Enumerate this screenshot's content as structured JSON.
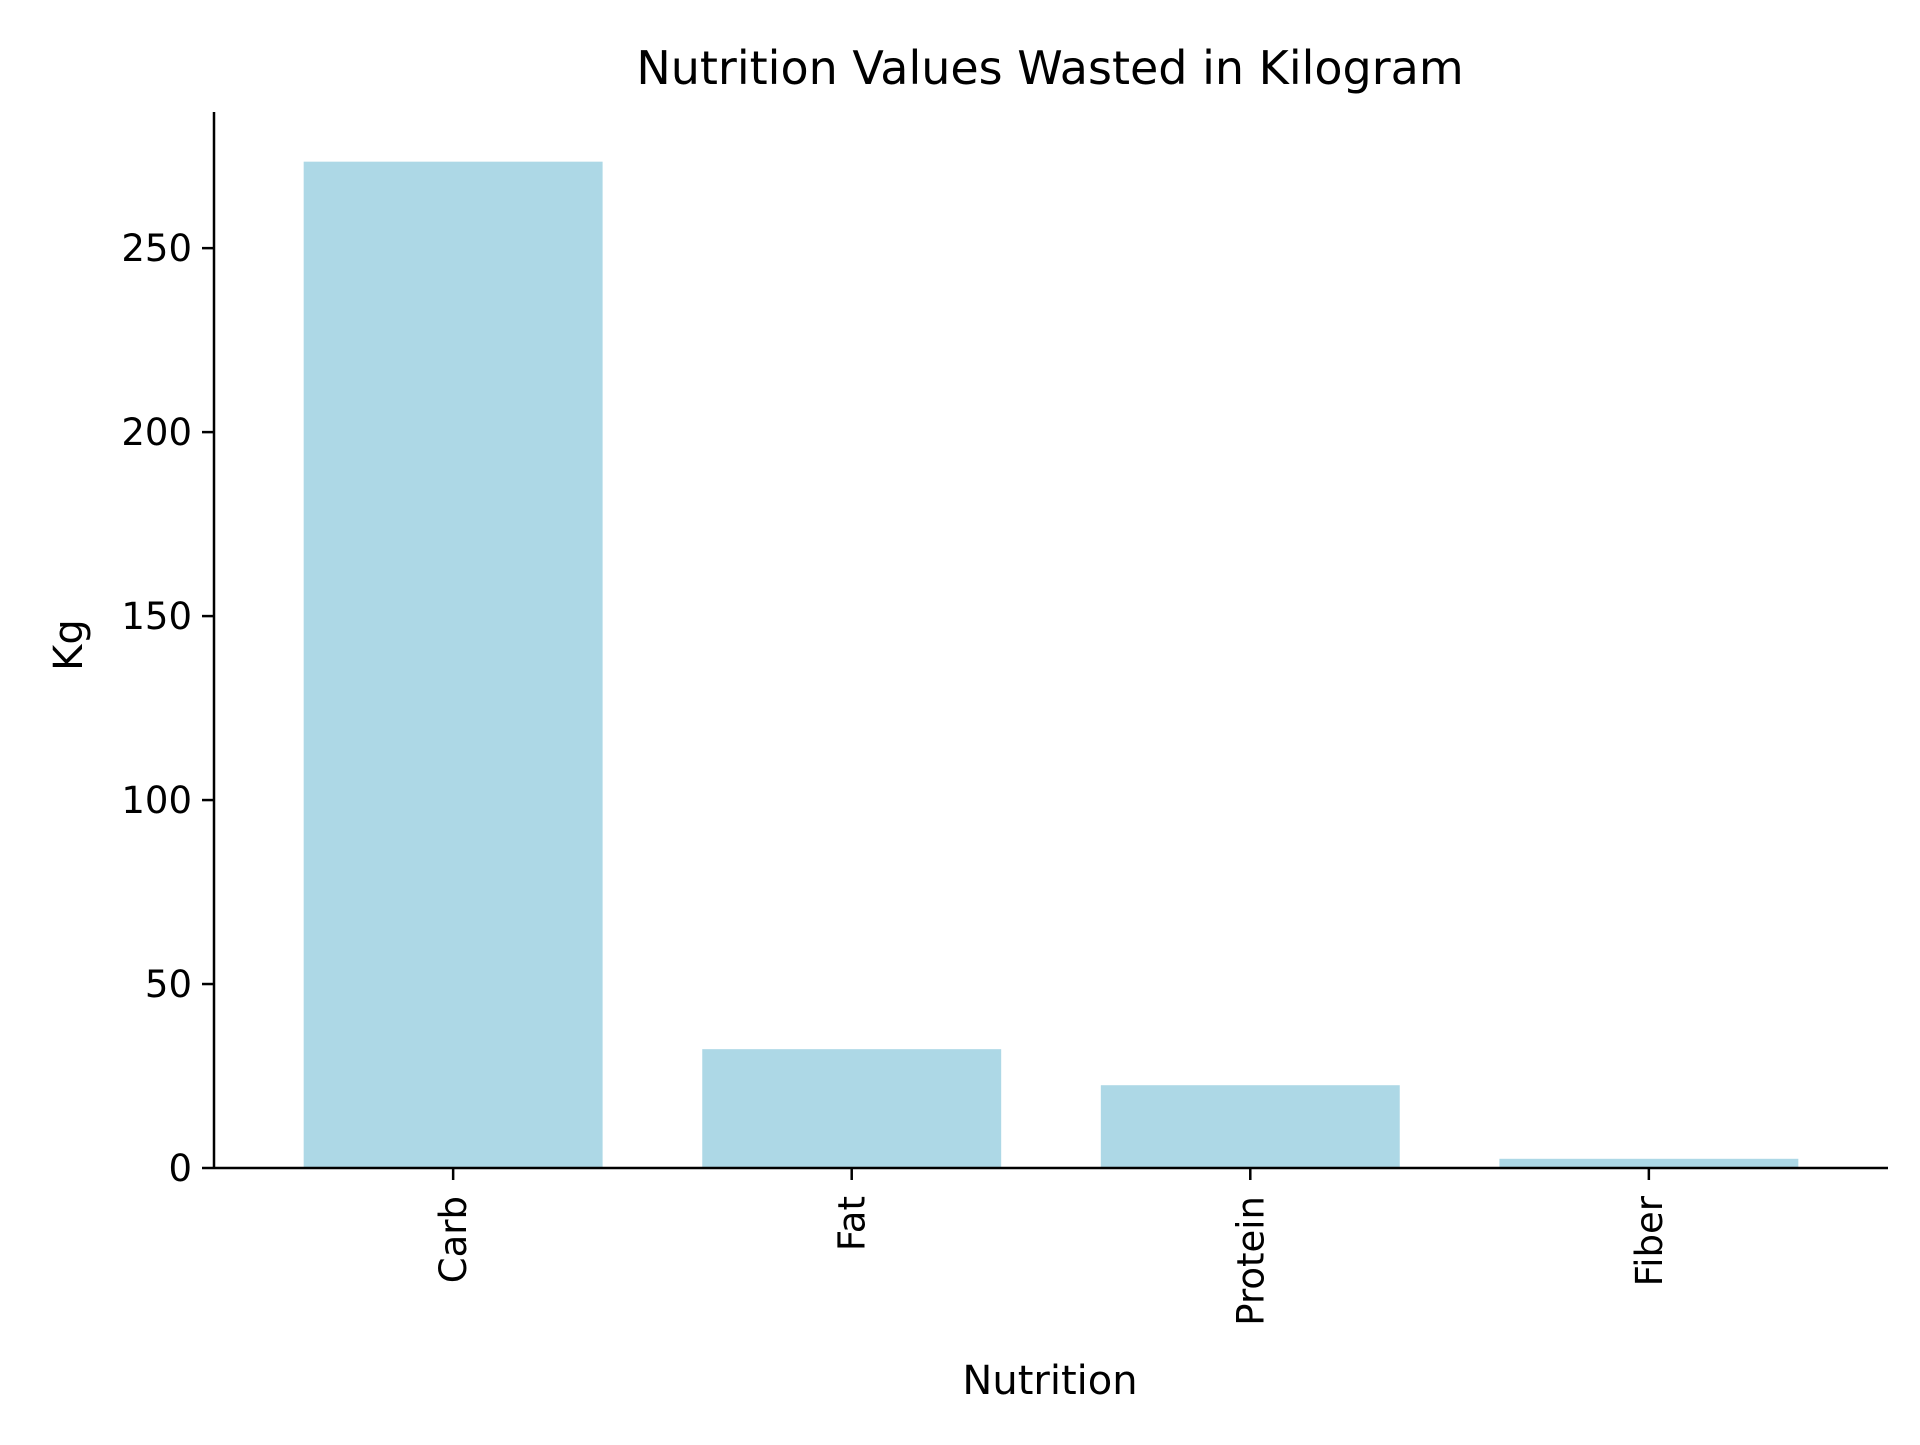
{
  "chart_data": {
    "type": "bar",
    "title": "Nutrition Values Wasted in Kilogram",
    "xlabel": "Nutrition",
    "ylabel": "Kg",
    "categories": [
      "Carb",
      "Fat",
      "Protein",
      "Fiber"
    ],
    "values": [
      273.5,
      32.3,
      22.5,
      2.5
    ],
    "ylim": [
      0,
      287
    ],
    "yticks": [
      0,
      50,
      100,
      150,
      200,
      250
    ],
    "ytick_labels": [
      "0",
      "50",
      "100",
      "150",
      "200",
      "250"
    ],
    "xtick_rotation": "vertical",
    "grid": false,
    "legend": "none",
    "spines": [
      "left",
      "bottom"
    ],
    "bar_color": "#add8e6",
    "axis_color": "#000000",
    "text_color": "#000000",
    "background": "#ffffff"
  }
}
